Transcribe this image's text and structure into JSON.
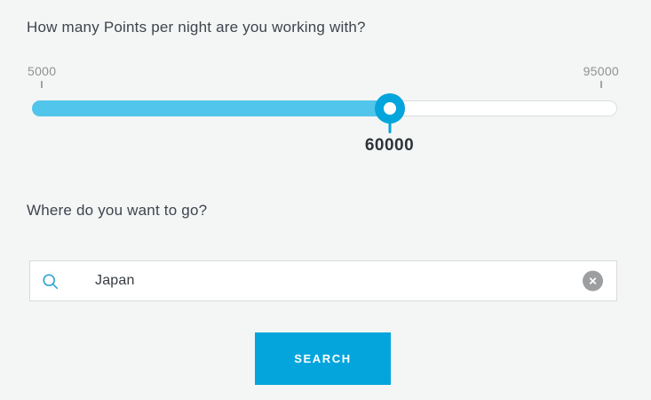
{
  "form": {
    "points_question": "How many Points per night are you working with?",
    "destination_question": "Where do you want to go?"
  },
  "slider": {
    "min": 5000,
    "max": 95000,
    "value": 60000,
    "min_label": "5000",
    "max_label": "95000",
    "value_label": "60000"
  },
  "search": {
    "value": "Japan",
    "left_icon": "search-icon",
    "right_icon": "close-icon",
    "clear_glyph": "✕"
  },
  "actions": {
    "search_label": "SEARCH"
  },
  "colors": {
    "accent": "#04a4dc",
    "track_fill": "#52c6ea",
    "heading_text": "#3f454d",
    "muted_label": "#8f9294",
    "clear_button": "#9c9ea0",
    "search_icon": "#2ba3cf"
  }
}
